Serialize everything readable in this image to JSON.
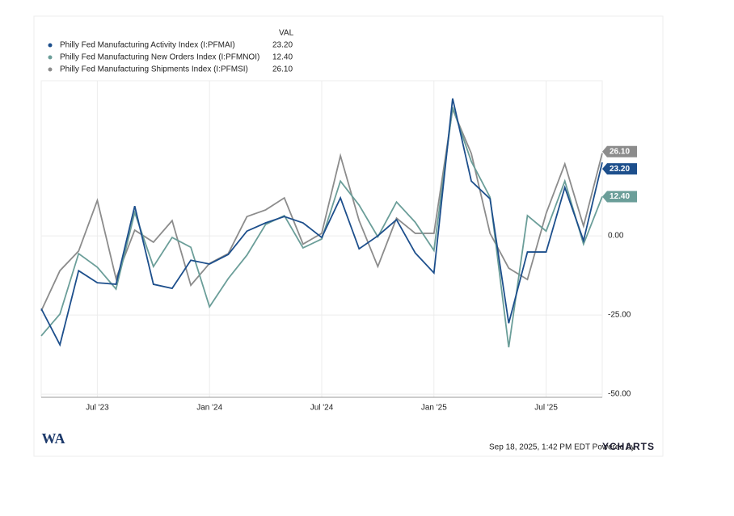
{
  "chart_data": {
    "type": "line",
    "value_header": "VAL",
    "categories": [
      null,
      null,
      null,
      "Jul '23",
      null,
      null,
      null,
      null,
      null,
      "Jan '24",
      null,
      null,
      null,
      null,
      null,
      "Jul '24",
      null,
      null,
      null,
      null,
      null,
      "Jan '25",
      null,
      null,
      null,
      null,
      null,
      "Jul '25",
      null,
      null,
      null
    ],
    "series": [
      {
        "name": "Philly Fed Manufacturing Activity Index (I:PFMAI)",
        "color": "#1d4f8c",
        "last_label": "23.20",
        "values": [
          -23,
          -34.4,
          -11,
          -14.8,
          -15.3,
          9.4,
          -15.3,
          -16.6,
          -7.7,
          -8.9,
          -5.9,
          1.5,
          4.1,
          6.1,
          4.1,
          -0.5,
          12,
          -4.1,
          0,
          5.1,
          -5.4,
          -11.7,
          43.4,
          17.3,
          11.7,
          -27.6,
          -5.1,
          -5.1,
          15.3,
          -1.5,
          23.2
        ]
      },
      {
        "name": "Philly Fed Manufacturing New Orders Index (I:PFMNOI)",
        "color": "#6b9e99",
        "last_label": "12.40",
        "values": [
          -31.6,
          -24.7,
          -5.6,
          -9.9,
          -16.8,
          7.4,
          -9.7,
          -0.5,
          -3.6,
          -22.4,
          -13.5,
          -6.1,
          3.6,
          6.4,
          -3.8,
          -1,
          17.3,
          9.7,
          -0.3,
          10.7,
          4.3,
          -4.6,
          40.6,
          23.5,
          12.2,
          -35.2,
          6.4,
          1.5,
          17.3,
          -2.6,
          12.4
        ]
      },
      {
        "name": "Philly Fed Manufacturing Shipments Index (I:PFMSI)",
        "color": "#8c8c8c",
        "last_label": "26.10",
        "values": [
          -23.7,
          -11,
          -4.8,
          11.2,
          -13.5,
          1.8,
          -2,
          4.8,
          -15.6,
          -8.7,
          -5.6,
          6.1,
          8.2,
          12,
          -2.6,
          0.8,
          25.3,
          4.8,
          -9.7,
          5.6,
          0.8,
          0.8,
          40,
          26,
          0.8,
          -10.2,
          -13.8,
          7.1,
          22.7,
          3.1,
          26.1
        ]
      }
    ],
    "ylim": [
      -51,
      49
    ],
    "yticks": [
      {
        "value": -50,
        "label": "-50.00"
      },
      {
        "value": -25,
        "label": "-25.00"
      },
      {
        "value": 0,
        "label": "0.00"
      }
    ],
    "grid": true,
    "footer": "Sep 18, 2025, 1:42 PM EDT Powered by",
    "brand": "YCHARTS",
    "logo_text": "WA"
  }
}
